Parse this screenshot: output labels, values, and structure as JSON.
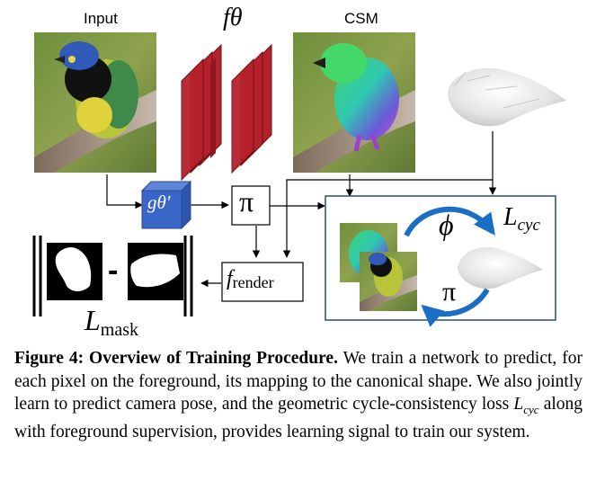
{
  "labels": {
    "input": "Input",
    "csm": "CSM",
    "f_theta": "fθ",
    "g_theta_prime": "gθ′",
    "pi_box": "π",
    "f_render_f": "f",
    "f_render_sub": "render",
    "l_mask_l": "L",
    "l_mask_sub": "mask",
    "minus": "-",
    "phi": "ϕ",
    "l_cyc_l": "L",
    "l_cyc_sub": "cyc",
    "pi_cycle": "π"
  },
  "colors": {
    "network_red": "#b5222b",
    "g_blue": "#3a66c8",
    "cycle_arrow_blue": "#1a6fc4",
    "box_border": "#2d4d6b"
  },
  "icons": {
    "photos": "bird-photo-icon",
    "shape": "bird-mesh-icon",
    "masks": "bird-mask-icon"
  },
  "caption": {
    "figure_label": "Figure 4:",
    "figure_title": "Overview of Training Procedure.",
    "text_1": "We train a network to predict, for each pixel on the foreground, its mapping to the canonical shape. We also jointly learn to predict camera pose, and the geometric cycle-consistency loss",
    "loss_symbol": "Lcyc",
    "text_2": "along with foreground supervision, provides learning signal to train our system."
  }
}
